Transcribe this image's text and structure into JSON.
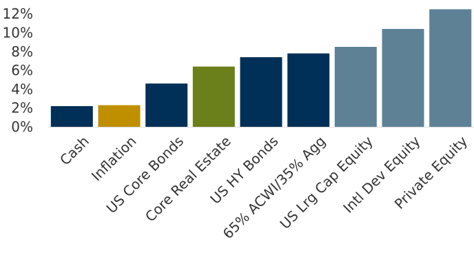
{
  "chart_data": {
    "type": "bar",
    "title": "",
    "xlabel": "",
    "ylabel": "",
    "categories": [
      "Cash",
      "Inflation",
      "US Core Bonds",
      "Core Real Estate",
      "US HY Bonds",
      "65% ACWI/35% Agg",
      "US Lrg Cap Equity",
      "Intl Dev Equity",
      "Private Equity"
    ],
    "values": [
      2.2,
      2.3,
      4.6,
      6.4,
      7.4,
      7.8,
      8.5,
      10.4,
      12.5
    ],
    "colors": [
      "#003057",
      "#BF8F00",
      "#003057",
      "#6B7F1A",
      "#003057",
      "#003057",
      "#5E8196",
      "#5E8196",
      "#5E8196"
    ],
    "ylim": [
      0,
      12.6
    ],
    "yticks": [
      0,
      2,
      4,
      6,
      8,
      10,
      12
    ],
    "ytick_labels": [
      "0%",
      "2%",
      "4%",
      "6%",
      "8%",
      "10%",
      "12%"
    ],
    "grid": false,
    "legend": "none"
  }
}
